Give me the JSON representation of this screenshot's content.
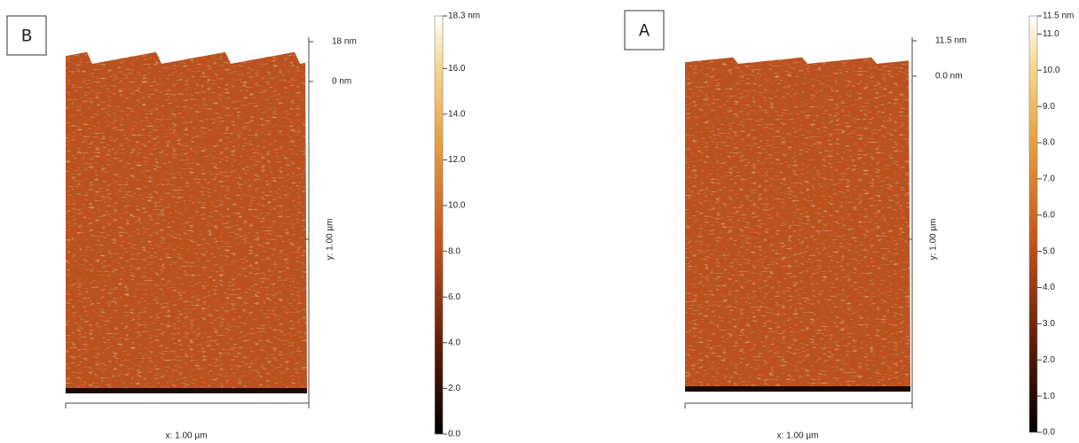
{
  "panels": [
    {
      "label": "B",
      "z_top": "18 nm",
      "z_zero": "0 nm",
      "y_label": "y: 1.00 µm",
      "x_label": "x: 1.00 µm",
      "colorbar": {
        "max": {
          "value": 18.3,
          "label": "18.3 nm"
        },
        "ticks": [
          {
            "value": 16,
            "label": "16.0"
          },
          {
            "value": 14,
            "label": "14.0"
          },
          {
            "value": 12,
            "label": "12.0"
          },
          {
            "value": 10,
            "label": "10.0"
          },
          {
            "value": 8,
            "label": "8.0"
          },
          {
            "value": 6,
            "label": "6.0"
          },
          {
            "value": 4,
            "label": "4.0"
          },
          {
            "value": 2,
            "label": "2.0"
          },
          {
            "value": 0,
            "label": "0.0"
          }
        ]
      }
    },
    {
      "label": "A",
      "z_top": "11.5 nm",
      "z_zero": "0.0 nm",
      "y_label": "y: 1.00 µm",
      "x_label": "x: 1.00 µm",
      "colorbar": {
        "max": {
          "value": 11.5,
          "label": "11.5 nm"
        },
        "ticks": [
          {
            "value": 11,
            "label": "11.0"
          },
          {
            "value": 10,
            "label": "10.0"
          },
          {
            "value": 9,
            "label": "9.0"
          },
          {
            "value": 8,
            "label": "8.0"
          },
          {
            "value": 7,
            "label": "7.0"
          },
          {
            "value": 6,
            "label": "6.0"
          },
          {
            "value": 5,
            "label": "5.0"
          },
          {
            "value": 4,
            "label": "4.0"
          },
          {
            "value": 3,
            "label": "3.0"
          },
          {
            "value": 2,
            "label": "2.0"
          },
          {
            "value": 1,
            "label": "1.0"
          },
          {
            "value": 0,
            "label": "0.0"
          }
        ]
      }
    }
  ]
}
